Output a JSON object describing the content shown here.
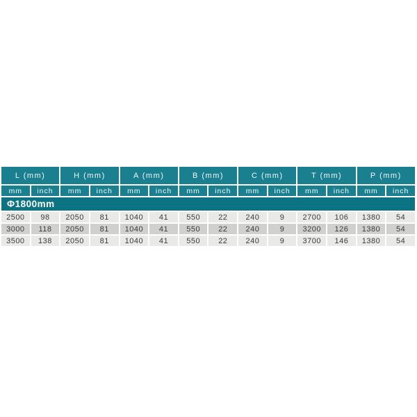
{
  "page": {
    "background": "#ffffff"
  },
  "table": {
    "groups": [
      "L (mm)",
      "H (mm)",
      "A (mm)",
      "B (mm)",
      "C (mm)",
      "T (mm)",
      "P (mm)"
    ],
    "subcols": [
      "mm",
      "inch"
    ],
    "band_label": "Φ1800mm",
    "rows": [
      {
        "cells": [
          "2500",
          "98",
          "2050",
          "81",
          "1040",
          "41",
          "550",
          "22",
          "240",
          "9",
          "2700",
          "106",
          "1380",
          "54"
        ]
      },
      {
        "cells": [
          "3000",
          "118",
          "2050",
          "81",
          "1040",
          "41",
          "550",
          "22",
          "240",
          "9",
          "3200",
          "126",
          "1380",
          "54"
        ]
      },
      {
        "cells": [
          "3500",
          "138",
          "2050",
          "81",
          "1040",
          "41",
          "550",
          "22",
          "240",
          "9",
          "3700",
          "146",
          "1380",
          "54"
        ]
      }
    ],
    "colors": {
      "header_teal": "#1a8090",
      "band_teal": "#0c7383",
      "row_light": "#e9e9e7",
      "row_dark": "#d0d0ce",
      "text_dark": "#3a3a3a",
      "header_text": "#f2fbfc"
    }
  }
}
